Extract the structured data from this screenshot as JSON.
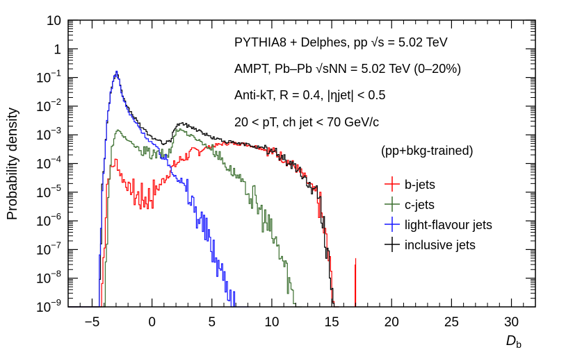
{
  "chart_data": {
    "type": "line",
    "y_scale": "log",
    "xlabel": "D",
    "xlabel_sub": "b",
    "ylabel": "Probability density",
    "xlim": [
      -7,
      32
    ],
    "ylim": [
      1e-09,
      10
    ],
    "x_ticks": [
      -5,
      0,
      5,
      10,
      15,
      20,
      25,
      30
    ],
    "x_tick_labels": [
      "−5",
      "0",
      "5",
      "10",
      "15",
      "20",
      "25",
      "30"
    ],
    "y_ticks": [
      {
        "value": 10,
        "label": "10",
        "exp": ""
      },
      {
        "value": 1,
        "label": "1",
        "exp": ""
      },
      {
        "value": 0.1,
        "label": "10",
        "exp": "−1"
      },
      {
        "value": 0.01,
        "label": "10",
        "exp": "−2"
      },
      {
        "value": 0.001,
        "label": "10",
        "exp": "−3"
      },
      {
        "value": 0.0001,
        "label": "10",
        "exp": "−4"
      },
      {
        "value": 1e-05,
        "label": "10",
        "exp": "−5"
      },
      {
        "value": 1e-06,
        "label": "10",
        "exp": "−6"
      },
      {
        "value": 1e-07,
        "label": "10",
        "exp": "−7"
      },
      {
        "value": 1e-08,
        "label": "10",
        "exp": "−8"
      },
      {
        "value": 1e-09,
        "label": "10",
        "exp": "−9"
      }
    ],
    "annotations": {
      "line1": "PYTHIA8 + Delphes, pp   √s = 5.02 TeV",
      "line2": "AMPT, Pb–Pb   √sNN = 5.02 TeV (0–20%)",
      "line3": "Anti-kT,   R = 0.4, |ηjet| < 0.5",
      "line4": "20 <   pT, ch jet < 70 GeV/c",
      "training": "(pp+bkg-trained)"
    },
    "series": [
      {
        "name": "b-jets",
        "color": "#ff0000",
        "x": [
          -7,
          -4.3,
          -4.0,
          -3.8,
          -3.5,
          -3.2,
          -3.0,
          -2.8,
          -2.5,
          -2.0,
          -1.5,
          -1.0,
          -0.5,
          0.0,
          0.5,
          1.0,
          1.5,
          2.0,
          2.5,
          3.0,
          3.5,
          4.0,
          4.5,
          5.0,
          5.5,
          6.0,
          6.5,
          7.0,
          7.5,
          8.0,
          8.5,
          9.0,
          9.5,
          10.0,
          10.5,
          11.0,
          11.5,
          12.0,
          12.5,
          13.0,
          13.5,
          14.0,
          14.3,
          14.6,
          14.9,
          15.2,
          15.5
        ],
        "y": [
          1e-09,
          1e-09,
          3e-07,
          2e-05,
          6e-05,
          0.0001,
          0.00012,
          6e-05,
          3e-05,
          1.5e-05,
          8e-06,
          6e-06,
          6e-06,
          8e-06,
          1.5e-05,
          3e-05,
          6e-05,
          0.0001,
          0.00015,
          0.0002,
          0.00025,
          0.0003,
          0.00035,
          0.0004,
          0.00045,
          0.0005,
          0.0005,
          0.0005,
          0.00048,
          0.00045,
          0.0004,
          0.00035,
          0.0003,
          0.00025,
          0.0002,
          0.00015,
          0.0001,
          7e-05,
          4e-05,
          2e-05,
          1e-05,
          3e-06,
          5e-07,
          1e-07,
          1e-08,
          1e-09,
          1e-09
        ]
      },
      {
        "name": "c-jets",
        "color": "#3a6e2e",
        "x": [
          -7,
          -4.0,
          -3.7,
          -3.4,
          -3.0,
          -2.5,
          -2.0,
          -1.5,
          -1.0,
          -0.5,
          0.0,
          0.5,
          1.0,
          1.5,
          1.8,
          2.0,
          2.5,
          3.0,
          3.5,
          4.0,
          4.5,
          5.0,
          5.5,
          6.0,
          6.5,
          7.0,
          7.5,
          8.0,
          8.5,
          9.0,
          9.5,
          10.0,
          10.5,
          11.0,
          11.5,
          12.0,
          12.4
        ],
        "y": [
          1e-09,
          1e-09,
          1e-05,
          0.0003,
          0.0015,
          0.001,
          0.0006,
          0.0004,
          0.0003,
          0.00025,
          0.0002,
          0.0002,
          0.0002,
          0.00025,
          0.0008,
          0.0015,
          0.0015,
          0.001,
          0.0008,
          0.0006,
          0.0004,
          0.0003,
          0.0002,
          0.0001,
          6e-05,
          4e-05,
          2e-05,
          1e-05,
          5e-06,
          2e-06,
          8e-07,
          3e-07,
          1e-07,
          3e-08,
          5e-09,
          1e-09,
          1e-09
        ]
      },
      {
        "name": "light-flavour jets",
        "color": "#1515ff",
        "x": [
          -7,
          -4.5,
          -4.2,
          -3.8,
          -3.5,
          -3.2,
          -3.0,
          -2.8,
          -2.5,
          -2.0,
          -1.5,
          -1.0,
          -0.5,
          0.0,
          0.5,
          1.0,
          1.5,
          2.0,
          2.5,
          3.0,
          3.5,
          4.0,
          4.5,
          5.0,
          5.5,
          6.0,
          6.5,
          7.0,
          7.5,
          8.0
        ],
        "y": [
          1e-09,
          1e-09,
          1e-05,
          0.003,
          0.03,
          0.1,
          0.15,
          0.08,
          0.02,
          0.006,
          0.003,
          0.0015,
          0.0008,
          0.0005,
          0.0003,
          0.00015,
          8e-05,
          4e-05,
          2e-05,
          8e-06,
          3e-06,
          1e-06,
          4e-07,
          1e-07,
          3e-08,
          1e-08,
          3e-09,
          1e-09,
          1e-09,
          1e-09
        ]
      },
      {
        "name": "inclusive jets",
        "color": "#000000",
        "x": [
          -7,
          -4.5,
          -4.2,
          -3.8,
          -3.5,
          -3.2,
          -3.0,
          -2.8,
          -2.5,
          -2.0,
          -1.5,
          -1.0,
          -0.5,
          0.0,
          0.5,
          1.0,
          1.5,
          1.8,
          2.0,
          2.5,
          3.0,
          3.5,
          4.0,
          4.5,
          5.0,
          5.5,
          6.0,
          6.5,
          7.0,
          7.5,
          8.0,
          8.5,
          9.0,
          9.5,
          10.0,
          10.5,
          11.0,
          11.5,
          12.0,
          12.5,
          13.0,
          13.5,
          14.0,
          14.3,
          14.6,
          14.9,
          15.2,
          15.5
        ],
        "y": [
          1e-09,
          1e-09,
          1e-05,
          0.003,
          0.03,
          0.1,
          0.15,
          0.08,
          0.02,
          0.008,
          0.004,
          0.002,
          0.0012,
          0.0008,
          0.0006,
          0.0005,
          0.0006,
          0.0015,
          0.0022,
          0.0025,
          0.002,
          0.0017,
          0.0013,
          0.001,
          0.0008,
          0.0007,
          0.0006,
          0.00055,
          0.0005,
          0.00048,
          0.00045,
          0.0004,
          0.00035,
          0.0003,
          0.00025,
          0.0002,
          0.00015,
          0.0001,
          7e-05,
          4e-05,
          2e-05,
          1e-05,
          3e-06,
          5e-07,
          1e-07,
          1e-08,
          1e-09,
          1e-09
        ]
      }
    ]
  }
}
